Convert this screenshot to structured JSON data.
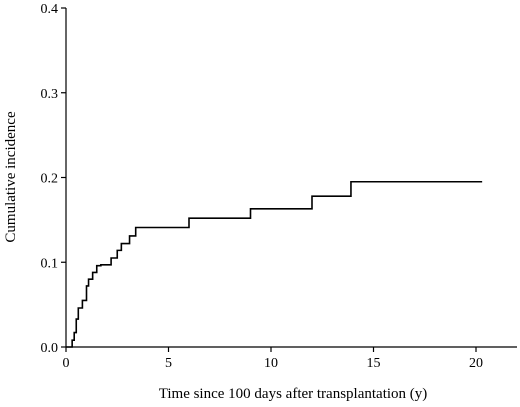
{
  "chart_data": {
    "type": "line",
    "title": "",
    "xlabel": "Time since 100 days after transplantation (y)",
    "ylabel": "Cumulative incidence",
    "xlim": [
      0,
      22
    ],
    "ylim": [
      0,
      0.4
    ],
    "x_ticks": [
      {
        "value": 0,
        "label": "0"
      },
      {
        "value": 5,
        "label": "5"
      },
      {
        "value": 10,
        "label": "10"
      },
      {
        "value": 15,
        "label": "15"
      },
      {
        "value": 20,
        "label": "20"
      }
    ],
    "y_ticks": [
      {
        "value": 0.0,
        "label": "0.0"
      },
      {
        "value": 0.1,
        "label": "0.1"
      },
      {
        "value": 0.2,
        "label": "0.2"
      },
      {
        "value": 0.3,
        "label": "0.3"
      },
      {
        "value": 0.4,
        "label": "0.4"
      }
    ],
    "grid": false,
    "series": [
      {
        "step": true,
        "color": "#000000",
        "x": [
          0,
          0.3,
          0.4,
          0.5,
          0.6,
          0.8,
          1.0,
          1.1,
          1.3,
          1.5,
          1.7,
          2.2,
          2.5,
          2.7,
          3.1,
          3.4,
          6.0,
          9.0,
          12.0,
          13.9,
          20.3
        ],
        "y": [
          0,
          0.008,
          0.017,
          0.033,
          0.046,
          0.055,
          0.072,
          0.08,
          0.088,
          0.096,
          0.097,
          0.105,
          0.114,
          0.122,
          0.131,
          0.141,
          0.152,
          0.163,
          0.178,
          0.195,
          0.195
        ]
      }
    ]
  }
}
